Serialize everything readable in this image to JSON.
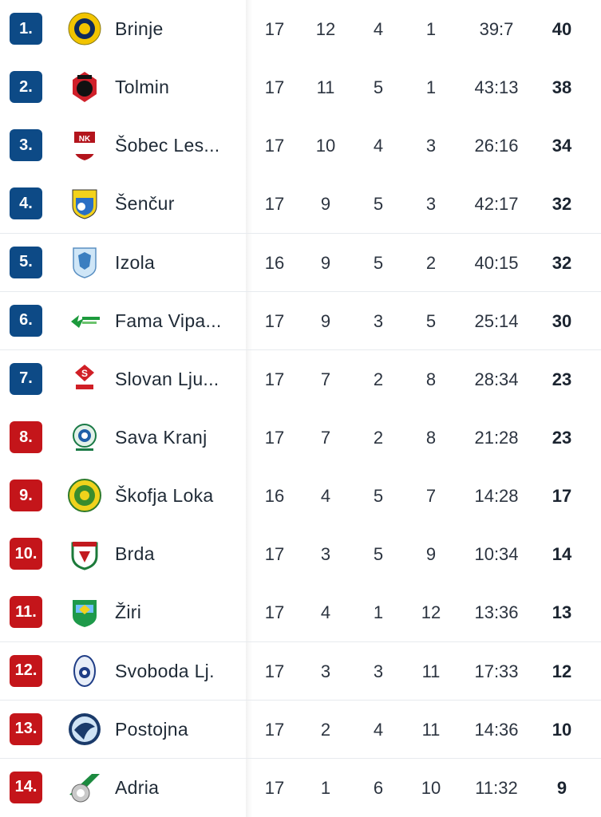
{
  "colors": {
    "promotion_badge": "#0d4a86",
    "relegation_badge": "#c4151a"
  },
  "standings": [
    {
      "rank": "1.",
      "team": "Brinje",
      "played": "17",
      "won": "12",
      "drawn": "4",
      "lost": "1",
      "goals": "39:7",
      "points": "40",
      "zone": "blue",
      "logo": "brinje-crest-icon"
    },
    {
      "rank": "2.",
      "team": "Tolmin",
      "played": "17",
      "won": "11",
      "drawn": "5",
      "lost": "1",
      "goals": "43:13",
      "points": "38",
      "zone": "blue",
      "logo": "tolmin-crest-icon"
    },
    {
      "rank": "3.",
      "team": "Šobec Les...",
      "played": "17",
      "won": "10",
      "drawn": "4",
      "lost": "3",
      "goals": "26:16",
      "points": "34",
      "zone": "blue",
      "logo": "sobec-crest-icon"
    },
    {
      "rank": "4.",
      "team": "Šenčur",
      "played": "17",
      "won": "9",
      "drawn": "5",
      "lost": "3",
      "goals": "42:17",
      "points": "32",
      "zone": "blue",
      "logo": "sencur-crest-icon"
    },
    {
      "rank": "5.",
      "team": "Izola",
      "played": "16",
      "won": "9",
      "drawn": "5",
      "lost": "2",
      "goals": "40:15",
      "points": "32",
      "zone": "blue",
      "logo": "izola-crest-icon"
    },
    {
      "rank": "6.",
      "team": "Fama Vipa...",
      "played": "17",
      "won": "9",
      "drawn": "3",
      "lost": "5",
      "goals": "25:14",
      "points": "30",
      "zone": "blue",
      "logo": "fama-vipava-crest-icon"
    },
    {
      "rank": "7.",
      "team": "Slovan Lju...",
      "played": "17",
      "won": "7",
      "drawn": "2",
      "lost": "8",
      "goals": "28:34",
      "points": "23",
      "zone": "blue",
      "logo": "slovan-crest-icon"
    },
    {
      "rank": "8.",
      "team": "Sava Kranj",
      "played": "17",
      "won": "7",
      "drawn": "2",
      "lost": "8",
      "goals": "21:28",
      "points": "23",
      "zone": "red",
      "logo": "sava-kranj-crest-icon"
    },
    {
      "rank": "9.",
      "team": "Škofja Loka",
      "played": "16",
      "won": "4",
      "drawn": "5",
      "lost": "7",
      "goals": "14:28",
      "points": "17",
      "zone": "red",
      "logo": "skofja-loka-crest-icon"
    },
    {
      "rank": "10.",
      "team": "Brda",
      "played": "17",
      "won": "3",
      "drawn": "5",
      "lost": "9",
      "goals": "10:34",
      "points": "14",
      "zone": "red",
      "logo": "brda-crest-icon"
    },
    {
      "rank": "11.",
      "team": "Žiri",
      "played": "17",
      "won": "4",
      "drawn": "1",
      "lost": "12",
      "goals": "13:36",
      "points": "13",
      "zone": "red",
      "logo": "ziri-crest-icon"
    },
    {
      "rank": "12.",
      "team": "Svoboda Lj.",
      "played": "17",
      "won": "3",
      "drawn": "3",
      "lost": "11",
      "goals": "17:33",
      "points": "12",
      "zone": "red",
      "logo": "svoboda-crest-icon"
    },
    {
      "rank": "13.",
      "team": "Postojna",
      "played": "17",
      "won": "2",
      "drawn": "4",
      "lost": "11",
      "goals": "14:36",
      "points": "10",
      "zone": "red",
      "logo": "postojna-crest-icon"
    },
    {
      "rank": "14.",
      "team": "Adria",
      "played": "17",
      "won": "1",
      "drawn": "6",
      "lost": "10",
      "goals": "11:32",
      "points": "9",
      "zone": "red",
      "logo": "adria-crest-icon"
    }
  ]
}
